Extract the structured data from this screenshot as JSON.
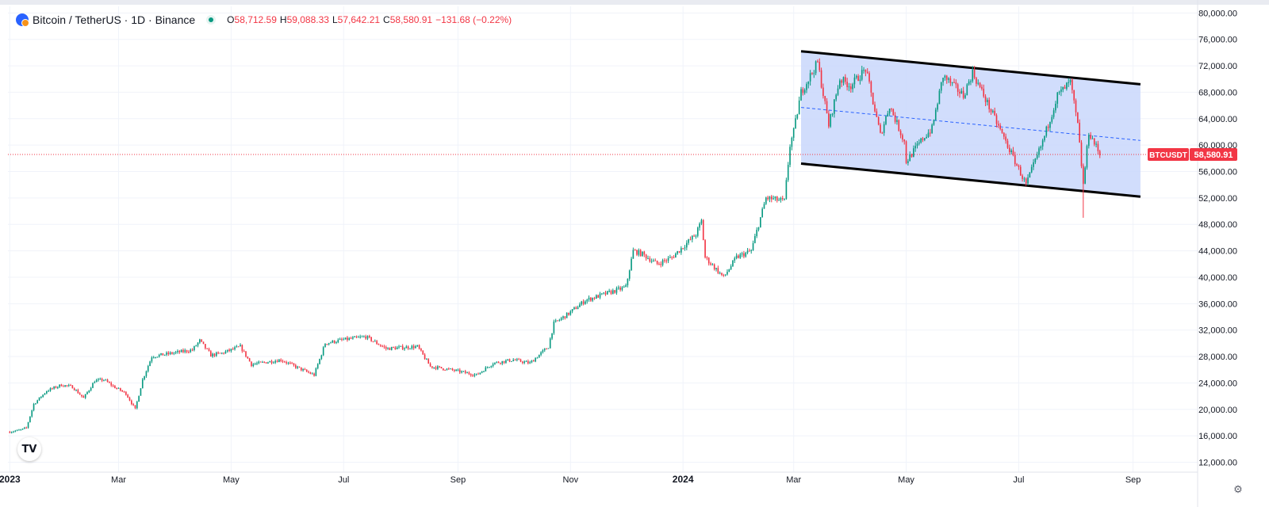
{
  "legend": {
    "symbol_title": "Bitcoin / TetherUS · 1D · Binance",
    "symbol_icon": "bitcoin-icon",
    "status": "market-open-icon",
    "open_label": "O",
    "open": "58,712.59",
    "high_label": "H",
    "high": "59,088.33",
    "low_label": "L",
    "low": "57,642.21",
    "close_label": "C",
    "close": "58,580.91",
    "change": "−131.68 (−0.22%)"
  },
  "price_tag": {
    "symbol": "BTCUSDT",
    "value": "58,580.91"
  },
  "logo_text": "TV",
  "colors": {
    "up": "#089981",
    "down": "#f23645",
    "channel_fill": "#c9d7fb",
    "channel_line": "#000000",
    "midline": "#2962ff",
    "grid": "#f0f3fa",
    "axis_text": "#131722"
  },
  "chart_data": {
    "type": "candlestick",
    "symbol": "BTCUSDT",
    "interval": "1D",
    "exchange": "Binance",
    "current_price": 58580.91,
    "y_axis": {
      "scale": "linear",
      "ticks": [
        12000,
        16000,
        20000,
        24000,
        28000,
        32000,
        36000,
        40000,
        44000,
        48000,
        52000,
        56000,
        60000,
        64000,
        68000,
        72000,
        76000,
        80000
      ],
      "tick_labels": [
        "12,000.00",
        "16,000.00",
        "20,000.00",
        "24,000.00",
        "28,000.00",
        "32,000.00",
        "36,000.00",
        "40,000.00",
        "44,000.00",
        "48,000.00",
        "52,000.00",
        "56,000.00",
        "60,000.00",
        "64,000.00",
        "68,000.00",
        "72,000.00",
        "76,000.00",
        "80,000.00"
      ],
      "range": [
        10500,
        81000
      ]
    },
    "x_axis": {
      "ticks": [
        "2023-01-01",
        "2023-03-01",
        "2023-05-01",
        "2023-07-01",
        "2023-09-01",
        "2023-11-01",
        "2024-01-01",
        "2024-03-01",
        "2024-05-01",
        "2024-07-01",
        "2024-09-01"
      ],
      "tick_labels": [
        "2023",
        "Mar",
        "May",
        "Jul",
        "Sep",
        "Nov",
        "2024",
        "Mar",
        "May",
        "Jul",
        "Sep"
      ],
      "range": [
        "2022-12-31",
        "2024-10-06"
      ]
    },
    "price_path": [
      [
        "2023-01-01",
        16600
      ],
      [
        "2023-01-07",
        16900
      ],
      [
        "2023-01-10",
        17200
      ],
      [
        "2023-01-14",
        20800
      ],
      [
        "2023-01-21",
        22800
      ],
      [
        "2023-01-29",
        23700
      ],
      [
        "2023-02-04",
        23400
      ],
      [
        "2023-02-10",
        21700
      ],
      [
        "2023-02-16",
        24300
      ],
      [
        "2023-02-21",
        24500
      ],
      [
        "2023-02-26",
        23500
      ],
      [
        "2023-03-05",
        22400
      ],
      [
        "2023-03-10",
        20000
      ],
      [
        "2023-03-14",
        24500
      ],
      [
        "2023-03-19",
        28000
      ],
      [
        "2023-03-30",
        28500
      ],
      [
        "2023-04-10",
        29000
      ],
      [
        "2023-04-14",
        30400
      ],
      [
        "2023-04-20",
        28200
      ],
      [
        "2023-04-26",
        28500
      ],
      [
        "2023-05-06",
        29500
      ],
      [
        "2023-05-12",
        26800
      ],
      [
        "2023-05-28",
        27500
      ],
      [
        "2023-06-10",
        25800
      ],
      [
        "2023-06-15",
        25200
      ],
      [
        "2023-06-21",
        30000
      ],
      [
        "2023-06-30",
        30500
      ],
      [
        "2023-07-13",
        31000
      ],
      [
        "2023-07-24",
        29200
      ],
      [
        "2023-08-10",
        29500
      ],
      [
        "2023-08-17",
        26500
      ],
      [
        "2023-08-28",
        26000
      ],
      [
        "2023-09-11",
        25200
      ],
      [
        "2023-09-20",
        27000
      ],
      [
        "2023-10-01",
        27500
      ],
      [
        "2023-10-10",
        27000
      ],
      [
        "2023-10-20",
        29500
      ],
      [
        "2023-10-23",
        33000
      ],
      [
        "2023-10-31",
        34500
      ],
      [
        "2023-11-09",
        36500
      ],
      [
        "2023-11-20",
        37500
      ],
      [
        "2023-12-01",
        38500
      ],
      [
        "2023-12-05",
        44000
      ],
      [
        "2023-12-10",
        43500
      ],
      [
        "2023-12-18",
        42000
      ],
      [
        "2023-12-26",
        43000
      ],
      [
        "2024-01-08",
        46500
      ],
      [
        "2024-01-11",
        48500
      ],
      [
        "2024-01-13",
        43000
      ],
      [
        "2024-01-23",
        40000
      ],
      [
        "2024-01-30",
        43000
      ],
      [
        "2024-02-07",
        44000
      ],
      [
        "2024-02-15",
        52000
      ],
      [
        "2024-02-25",
        51500
      ],
      [
        "2024-02-28",
        60000
      ],
      [
        "2024-03-01",
        62000
      ],
      [
        "2024-03-05",
        68000
      ],
      [
        "2024-03-10",
        70500
      ],
      [
        "2024-03-14",
        72500
      ],
      [
        "2024-03-20",
        63000
      ],
      [
        "2024-03-26",
        70000
      ],
      [
        "2024-04-01",
        69000
      ],
      [
        "2024-04-09",
        71500
      ],
      [
        "2024-04-17",
        61500
      ],
      [
        "2024-04-22",
        66000
      ],
      [
        "2024-04-30",
        60500
      ],
      [
        "2024-05-01",
        57500
      ],
      [
        "2024-05-10",
        61000
      ],
      [
        "2024-05-15",
        62500
      ],
      [
        "2024-05-21",
        70500
      ],
      [
        "2024-06-01",
        67500
      ],
      [
        "2024-06-06",
        71000
      ],
      [
        "2024-06-12",
        67500
      ],
      [
        "2024-06-24",
        60500
      ],
      [
        "2024-07-05",
        54000
      ],
      [
        "2024-07-14",
        60500
      ],
      [
        "2024-07-22",
        67500
      ],
      [
        "2024-07-29",
        69500
      ],
      [
        "2024-08-02",
        63000
      ],
      [
        "2024-08-05",
        54000
      ],
      [
        "2024-08-08",
        62000
      ],
      [
        "2024-08-14",
        58580
      ]
    ],
    "annotations": {
      "descending_channel": {
        "upper": [
          [
            "2024-03-05",
            74200
          ],
          [
            "2024-09-05",
            69200
          ]
        ],
        "lower": [
          [
            "2024-03-05",
            57200
          ],
          [
            "2024-09-05",
            52200
          ]
        ],
        "midline": [
          [
            "2024-03-05",
            65700
          ],
          [
            "2024-09-05",
            60700
          ]
        ]
      },
      "current_price_line": 58580.91
    },
    "grid": true
  }
}
